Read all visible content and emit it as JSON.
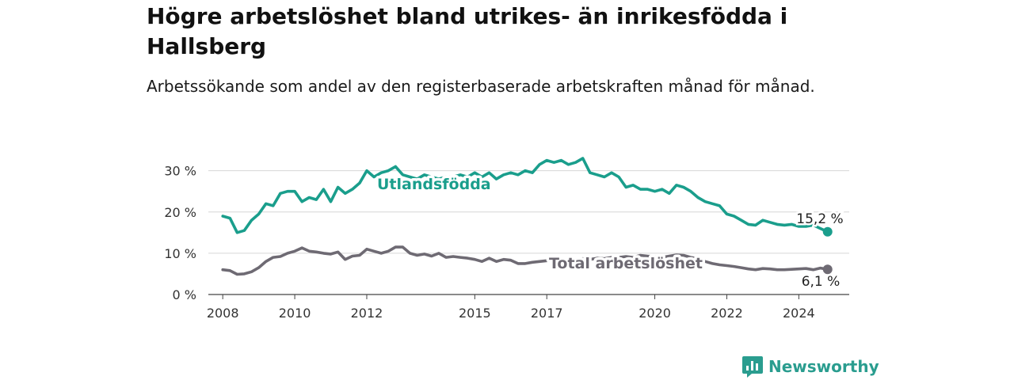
{
  "header": {
    "title": "Högre arbetslöshet bland utrikes- än inrikesfödda i Hallsberg",
    "subtitle": "Arbetssökande som andel av den registerbaserade arbetskraften månad för månad."
  },
  "branding": {
    "name": "Newsworthy",
    "icon": "newsworthy-logo-icon",
    "color": "#2a9d8f"
  },
  "chart_data": {
    "type": "line",
    "x_ticks": [
      "2008",
      "2010",
      "2012",
      "2015",
      "2017",
      "2020",
      "2022",
      "2024"
    ],
    "x_tick_values": [
      2008.0,
      2010.0,
      2012.0,
      2015.0,
      2017.0,
      2020.0,
      2022.0,
      2024.0
    ],
    "xlim": [
      2007.6,
      2025.4
    ],
    "y_ticks": [
      "0 %",
      "10 %",
      "20 %",
      "30 %"
    ],
    "y_tick_values": [
      0,
      10,
      20,
      30
    ],
    "ylim": [
      0,
      33
    ],
    "grid": true,
    "series": [
      {
        "name": "Utlandsfödda",
        "color": "#1a9e8c",
        "end_label": "15,2 %",
        "x": [
          2008.0,
          2008.2,
          2008.4,
          2008.6,
          2008.8,
          2009.0,
          2009.2,
          2009.4,
          2009.6,
          2009.8,
          2010.0,
          2010.2,
          2010.4,
          2010.6,
          2010.8,
          2011.0,
          2011.2,
          2011.4,
          2011.6,
          2011.8,
          2012.0,
          2012.2,
          2012.4,
          2012.6,
          2012.8,
          2013.0,
          2013.2,
          2013.4,
          2013.6,
          2013.8,
          2014.0,
          2014.2,
          2014.4,
          2014.6,
          2014.8,
          2015.0,
          2015.2,
          2015.4,
          2015.6,
          2015.8,
          2016.0,
          2016.2,
          2016.4,
          2016.6,
          2016.8,
          2017.0,
          2017.2,
          2017.4,
          2017.6,
          2017.8,
          2018.0,
          2018.2,
          2018.4,
          2018.6,
          2018.8,
          2019.0,
          2019.2,
          2019.4,
          2019.6,
          2019.8,
          2020.0,
          2020.2,
          2020.4,
          2020.6,
          2020.8,
          2021.0,
          2021.2,
          2021.4,
          2021.6,
          2021.8,
          2022.0,
          2022.2,
          2022.4,
          2022.6,
          2022.8,
          2023.0,
          2023.2,
          2023.4,
          2023.6,
          2023.8,
          2024.0,
          2024.2,
          2024.4,
          2024.6,
          2024.8
        ],
        "values": [
          19.0,
          18.5,
          15.0,
          15.5,
          18.0,
          19.5,
          22.0,
          21.5,
          24.5,
          25.0,
          25.0,
          22.5,
          23.5,
          23.0,
          25.5,
          22.5,
          26.0,
          24.5,
          25.5,
          27.0,
          30.0,
          28.5,
          29.5,
          30.0,
          31.0,
          29.0,
          28.5,
          28.0,
          29.0,
          28.5,
          28.0,
          28.5,
          28.5,
          29.0,
          28.5,
          29.5,
          28.5,
          29.5,
          28.0,
          29.0,
          29.5,
          29.0,
          30.0,
          29.5,
          31.5,
          32.5,
          32.0,
          32.5,
          31.5,
          32.0,
          33.0,
          29.5,
          29.0,
          28.5,
          29.5,
          28.5,
          26.0,
          26.5,
          25.5,
          25.5,
          25.0,
          25.5,
          24.5,
          26.5,
          26.0,
          25.0,
          23.5,
          22.5,
          22.0,
          21.5,
          19.5,
          19.0,
          18.0,
          17.0,
          16.8,
          18.0,
          17.5,
          17.0,
          16.8,
          17.0,
          16.5,
          16.5,
          16.8,
          16.0,
          15.2
        ]
      },
      {
        "name": "Total arbetslöshet",
        "color": "#6e6a73",
        "end_label": "6,1 %",
        "x": [
          2008.0,
          2008.2,
          2008.4,
          2008.6,
          2008.8,
          2009.0,
          2009.2,
          2009.4,
          2009.6,
          2009.8,
          2010.0,
          2010.2,
          2010.4,
          2010.6,
          2010.8,
          2011.0,
          2011.2,
          2011.4,
          2011.6,
          2011.8,
          2012.0,
          2012.2,
          2012.4,
          2012.6,
          2012.8,
          2013.0,
          2013.2,
          2013.4,
          2013.6,
          2013.8,
          2014.0,
          2014.2,
          2014.4,
          2014.6,
          2014.8,
          2015.0,
          2015.2,
          2015.4,
          2015.6,
          2015.8,
          2016.0,
          2016.2,
          2016.4,
          2016.6,
          2016.8,
          2017.0,
          2017.2,
          2017.4,
          2017.6,
          2017.8,
          2018.0,
          2018.2,
          2018.4,
          2018.6,
          2018.8,
          2019.0,
          2019.2,
          2019.4,
          2019.6,
          2019.8,
          2020.0,
          2020.2,
          2020.4,
          2020.6,
          2020.8,
          2021.0,
          2021.2,
          2021.4,
          2021.6,
          2021.8,
          2022.0,
          2022.2,
          2022.4,
          2022.6,
          2022.8,
          2023.0,
          2023.2,
          2023.4,
          2023.6,
          2023.8,
          2024.0,
          2024.2,
          2024.4,
          2024.6,
          2024.8
        ],
        "values": [
          6.0,
          5.8,
          4.9,
          5.0,
          5.5,
          6.5,
          8.0,
          9.0,
          9.2,
          10.0,
          10.5,
          11.3,
          10.5,
          10.3,
          10.0,
          9.8,
          10.3,
          8.5,
          9.3,
          9.5,
          11.0,
          10.5,
          10.0,
          10.5,
          11.5,
          11.5,
          10.0,
          9.5,
          9.8,
          9.3,
          10.0,
          9.0,
          9.2,
          9.0,
          8.8,
          8.5,
          8.0,
          8.8,
          8.0,
          8.5,
          8.3,
          7.5,
          7.5,
          7.8,
          8.0,
          8.2,
          8.5,
          8.5,
          8.3,
          8.5,
          8.7,
          8.5,
          8.8,
          8.7,
          9.0,
          9.0,
          9.2,
          9.0,
          9.5,
          9.3,
          9.2,
          9.0,
          9.3,
          9.6,
          9.5,
          9.0,
          8.7,
          8.0,
          7.5,
          7.2,
          7.0,
          6.8,
          6.5,
          6.2,
          6.0,
          6.3,
          6.2,
          6.0,
          6.0,
          6.1,
          6.2,
          6.3,
          6.0,
          6.4,
          6.1
        ]
      }
    ]
  }
}
